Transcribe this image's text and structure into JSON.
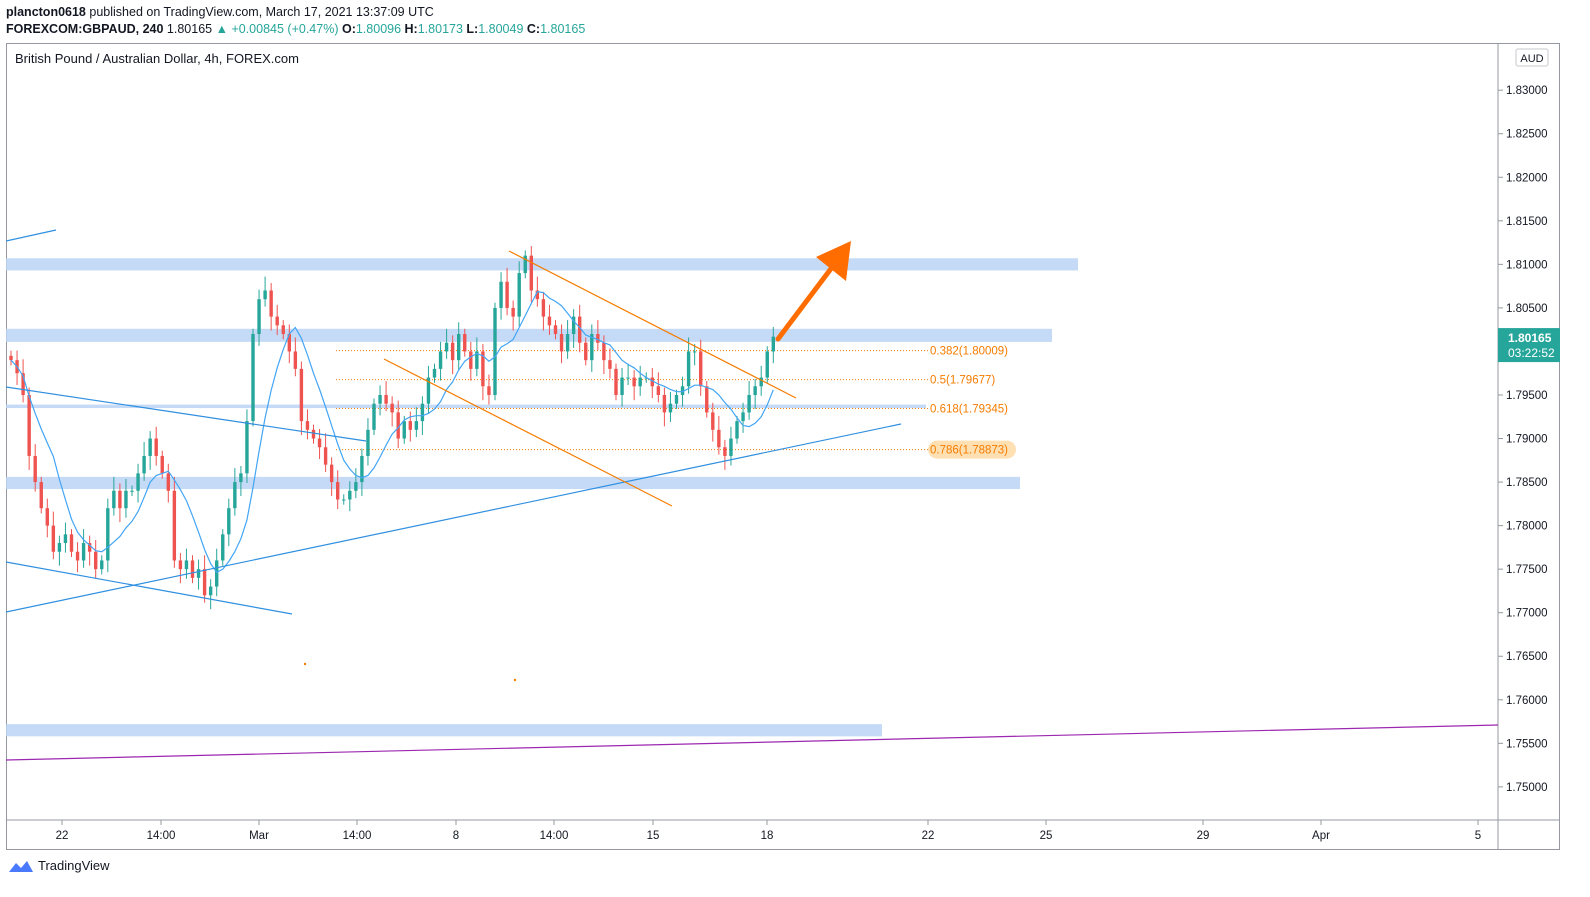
{
  "header": {
    "author": "plancton0618",
    "published": "published on TradingView.com, March 17, 2021 13:37:09 UTC",
    "symbol": "FOREXCOM:GBPAUD, 240",
    "last": "1.80165",
    "change": "+0.00845 (+0.47%)",
    "o_label": "O:",
    "o_value": "1.80096",
    "h_label": "H:",
    "h_value": "1.80173",
    "l_label": "L:",
    "l_value": "1.80049",
    "c_label": "C:",
    "c_value": "1.80165"
  },
  "chart_data": {
    "type": "candlestick",
    "title": "British Pound / Australian Dollar, 4h, FOREX.com",
    "currency": "AUD",
    "price_range": [
      1.747,
      1.8345
    ],
    "price_ticks": [
      "1.83000",
      "1.82500",
      "1.82000",
      "1.81500",
      "1.81000",
      "1.80500",
      "1.80000",
      "1.79500",
      "1.79000",
      "1.78500",
      "1.78000",
      "1.77500",
      "1.77000",
      "1.76500",
      "1.76000",
      "1.75500",
      "1.75000"
    ],
    "time_ticks": [
      "22",
      "14:00",
      "Mar",
      "14:00",
      "8",
      "14:00",
      "15",
      "18",
      "22",
      "25",
      "29",
      "Apr",
      "5"
    ],
    "last_price": "1.80165",
    "countdown": "03:22:52",
    "close_series": [
      1.799,
      1.7975,
      1.795,
      1.788,
      1.785,
      1.782,
      1.78,
      1.777,
      1.778,
      1.779,
      1.777,
      1.776,
      1.778,
      1.777,
      1.775,
      1.776,
      1.782,
      1.784,
      1.782,
      1.784,
      1.784,
      1.786,
      1.788,
      1.79,
      1.788,
      1.786,
      1.784,
      1.776,
      1.775,
      1.776,
      1.774,
      1.775,
      1.772,
      1.773,
      1.776,
      1.779,
      1.782,
      1.785,
      1.786,
      1.792,
      1.802,
      1.806,
      1.807,
      1.804,
      1.803,
      1.802,
      1.8,
      1.798,
      1.792,
      1.791,
      1.79,
      1.789,
      1.787,
      1.785,
      1.783,
      1.783,
      1.784,
      1.785,
      1.788,
      1.791,
      1.794,
      1.795,
      1.794,
      1.793,
      1.79,
      1.792,
      1.791,
      1.792,
      1.794,
      1.797,
      1.798,
      1.8,
      1.801,
      1.799,
      1.802,
      1.8,
      1.798,
      1.8,
      1.796,
      1.795,
      1.805,
      1.808,
      1.805,
      1.804,
      1.809,
      1.811,
      1.807,
      1.806,
      1.804,
      1.803,
      1.802,
      1.8,
      1.802,
      1.804,
      1.801,
      1.799,
      1.802,
      1.801,
      1.799,
      1.798,
      1.795,
      1.797,
      1.797,
      1.796,
      1.797,
      1.797,
      1.796,
      1.795,
      1.793,
      1.794,
      1.795,
      1.796,
      1.8,
      1.8,
      1.796,
      1.793,
      1.791,
      1.789,
      1.788,
      1.79,
      1.792,
      1.793,
      1.795,
      1.796,
      1.797,
      1.8,
      1.8017
    ],
    "fib_levels": [
      {
        "label": "0.382(1.80009)",
        "value": 1.80009
      },
      {
        "label": "0.5(1.79677)",
        "value": 1.79677
      },
      {
        "label": "0.618(1.79345)",
        "value": 1.79345
      },
      {
        "label": "0.786(1.78873)",
        "value": 1.78873
      }
    ],
    "zones": [
      {
        "low": 1.8093,
        "high": 1.8107
      },
      {
        "low": 1.8011,
        "high": 1.8026
      },
      {
        "low": 1.7935,
        "high": 1.7939
      },
      {
        "low": 1.7842,
        "high": 1.7856
      },
      {
        "low": 1.7558,
        "high": 1.7572
      }
    ]
  },
  "footer": {
    "brand": "TradingView"
  },
  "colors": {
    "up": "#26a69a",
    "down": "#ef5350",
    "zone": "#bbd4f5",
    "trend": "#2f8fe0",
    "fib": "#f57c00",
    "arrow": "#ff6d00",
    "purple": "#9c27b0"
  }
}
